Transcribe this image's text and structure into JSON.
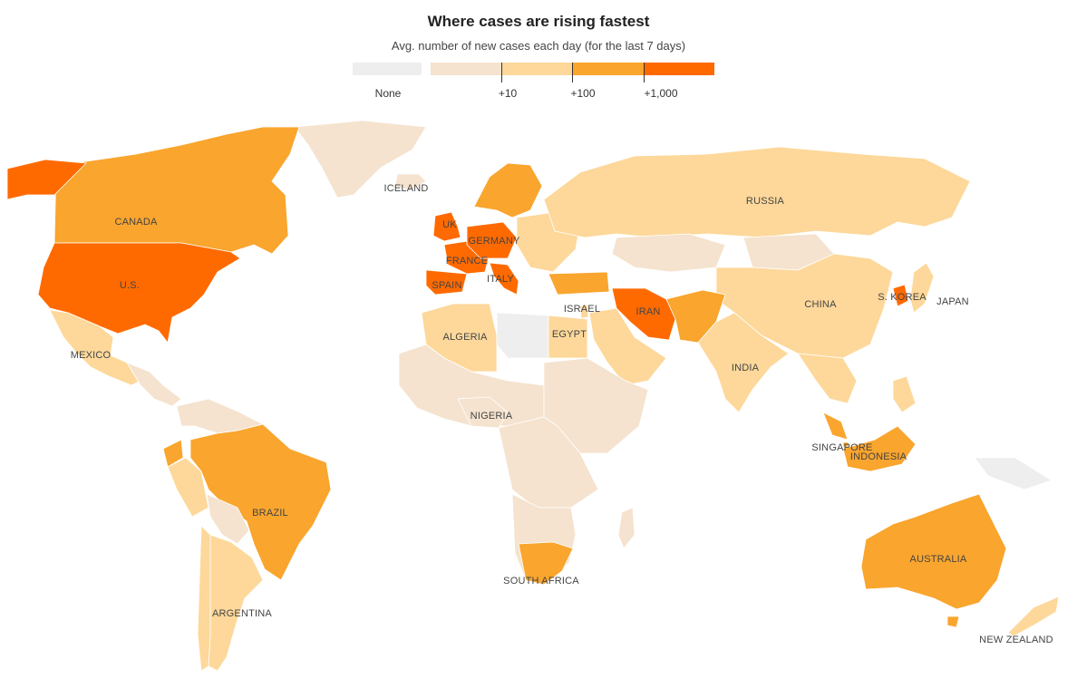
{
  "header": {
    "title": "Where cases are rising fastest",
    "subtitle": "Avg. number of new cases each day (for the last 7 days)"
  },
  "legend": {
    "items": [
      {
        "key": "none",
        "label": "None",
        "color": "#eeeeee"
      },
      {
        "key": "low",
        "label": "",
        "color": "#f5e3cf"
      },
      {
        "key": "ten",
        "label": "+10",
        "color": "#fdd89a"
      },
      {
        "key": "hundred",
        "label": "+100",
        "color": "#f9a52e"
      },
      {
        "key": "thousand",
        "label": "+1,000",
        "color": "#ff6a00"
      }
    ]
  },
  "colors": {
    "none": "#eeeeee",
    "low": "#f5e3cf",
    "ten": "#fdd89a",
    "hundred": "#f9a52e",
    "thousand": "#ff6a00"
  },
  "places": [
    {
      "id": "canada",
      "label": "CANADA",
      "level": "hundred"
    },
    {
      "id": "us",
      "label": "U.S.",
      "level": "thousand"
    },
    {
      "id": "mexico",
      "label": "MEXICO",
      "level": "ten"
    },
    {
      "id": "iceland",
      "label": "ICELAND",
      "level": "low"
    },
    {
      "id": "uk",
      "label": "UK",
      "level": "thousand"
    },
    {
      "id": "germany",
      "label": "GERMANY",
      "level": "thousand"
    },
    {
      "id": "france",
      "label": "FRANCE",
      "level": "thousand"
    },
    {
      "id": "spain",
      "label": "SPAIN",
      "level": "thousand"
    },
    {
      "id": "italy",
      "label": "ITALY",
      "level": "thousand"
    },
    {
      "id": "russia",
      "label": "RUSSIA",
      "level": "ten"
    },
    {
      "id": "israel",
      "label": "ISRAEL",
      "level": "ten"
    },
    {
      "id": "iran",
      "label": "IRAN",
      "level": "thousand"
    },
    {
      "id": "algeria",
      "label": "ALGERIA",
      "level": "ten"
    },
    {
      "id": "egypt",
      "label": "EGYPT",
      "level": "ten"
    },
    {
      "id": "china",
      "label": "CHINA",
      "level": "ten"
    },
    {
      "id": "skorea",
      "label": "S. KOREA",
      "level": "thousand"
    },
    {
      "id": "japan",
      "label": "JAPAN",
      "level": "ten"
    },
    {
      "id": "india",
      "label": "INDIA",
      "level": "ten"
    },
    {
      "id": "nigeria",
      "label": "NIGERIA",
      "level": "low"
    },
    {
      "id": "singapore",
      "label": "SINGAPORE",
      "level": "hundred"
    },
    {
      "id": "indonesia",
      "label": "INDONESIA",
      "level": "hundred"
    },
    {
      "id": "brazil",
      "label": "BRAZIL",
      "level": "hundred"
    },
    {
      "id": "southafrica",
      "label": "SOUTH AFRICA",
      "level": "hundred"
    },
    {
      "id": "argentina",
      "label": "ARGENTINA",
      "level": "ten"
    },
    {
      "id": "australia",
      "label": "AUSTRALIA",
      "level": "hundred"
    },
    {
      "id": "newzealand",
      "label": "NEW ZEALAND",
      "level": "ten"
    }
  ]
}
